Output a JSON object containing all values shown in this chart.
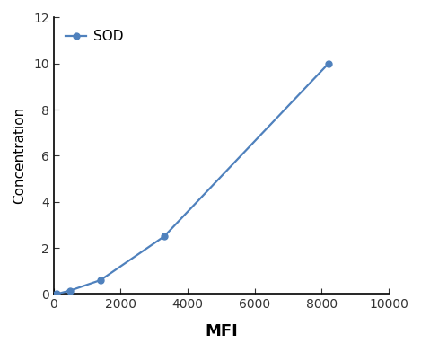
{
  "x": [
    100,
    500,
    1400,
    3300,
    8200
  ],
  "y": [
    0.0,
    0.15,
    0.6,
    2.5,
    10.0
  ],
  "line_color": "#4f81bd",
  "marker_color": "#4f81bd",
  "marker_style": "o",
  "marker_size": 5,
  "line_width": 1.6,
  "xlabel": "MFI",
  "ylabel": "Concentration",
  "legend_label": "SOD",
  "xlim": [
    0,
    10000
  ],
  "ylim": [
    0,
    12
  ],
  "xticks": [
    0,
    2000,
    4000,
    6000,
    8000,
    10000
  ],
  "yticks": [
    0,
    2,
    4,
    6,
    8,
    10,
    12
  ],
  "xlabel_fontsize": 13,
  "ylabel_fontsize": 11,
  "tick_fontsize": 10,
  "legend_fontsize": 11,
  "background_color": "#ffffff",
  "spine_color": "#000000"
}
